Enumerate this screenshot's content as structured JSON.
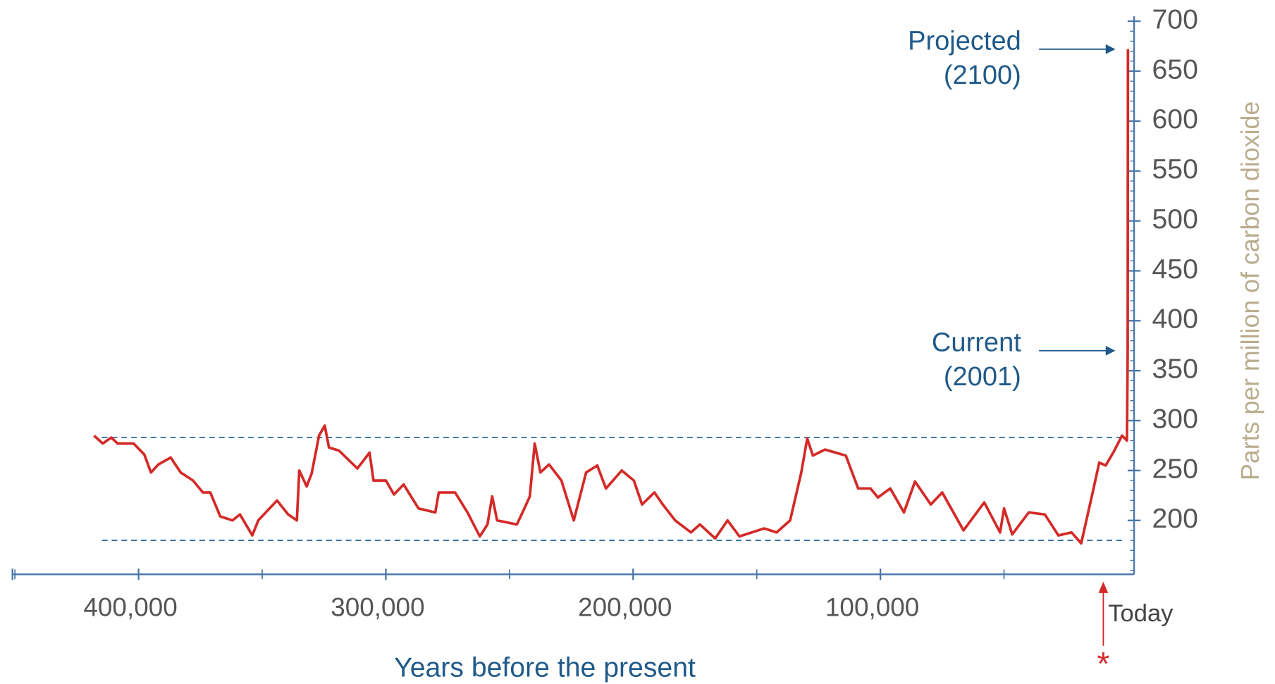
{
  "chart_data": {
    "type": "line",
    "x_label": "Years before the present",
    "y_label": "Parts per million of carbon dioxide",
    "series": [
      {
        "name": "CO2",
        "color": "#d42a27",
        "x": [
          418000,
          414500,
          411000,
          408500,
          402000,
          397700,
          395000,
          392000,
          387000,
          383000,
          378000,
          374000,
          371000,
          367000,
          362000,
          359000,
          354000,
          351600,
          344000,
          339500,
          336000,
          335000,
          332000,
          330000,
          327000,
          324700,
          323000,
          319000,
          311500,
          306600,
          305000,
          300000,
          296700,
          292800,
          286800,
          280000,
          278600,
          272000,
          267000,
          262000,
          258900,
          257000,
          255000,
          247000,
          244000,
          241800,
          239800,
          237500,
          234000,
          229000,
          224000,
          219000,
          214500,
          211000,
          204600,
          199700,
          196400,
          191400,
          188000,
          183000,
          176600,
          173000,
          166800,
          161800,
          157000,
          147000,
          142000,
          136500,
          132000,
          129600,
          127300,
          122400,
          114000,
          109000,
          104000,
          101000,
          96000,
          90500,
          86000,
          79600,
          75000,
          66400,
          58000,
          51600,
          50000,
          46700,
          40000,
          33500,
          28000,
          22700,
          18800,
          13800,
          11500,
          8900,
          5600,
          2300,
          300,
          0,
          -99
        ],
        "values": [
          285,
          277,
          283,
          277,
          277,
          266,
          248,
          256,
          263,
          248,
          240,
          228,
          228,
          204,
          200,
          206,
          185,
          200,
          220,
          206,
          200,
          250,
          234,
          247,
          285,
          295,
          273,
          270,
          252,
          268,
          240,
          240,
          226,
          236,
          212,
          208,
          228,
          228,
          208,
          184,
          196,
          224,
          200,
          196,
          212,
          224,
          277,
          248,
          256,
          240,
          200,
          248,
          255,
          232,
          250,
          240,
          216,
          228,
          216,
          200,
          188,
          196,
          182,
          200,
          184,
          192,
          188,
          200,
          248,
          282,
          265,
          271,
          265,
          232,
          232,
          223,
          232,
          208,
          239,
          216,
          228,
          190,
          218,
          188,
          212,
          186,
          208,
          206,
          185,
          188,
          177,
          232,
          258,
          255,
          269,
          285,
          280,
          370,
          672
        ]
      }
    ],
    "xlim": [
      451000,
      -2600
    ],
    "xticks": [
      {
        "value": 400000,
        "label": "400,000"
      },
      {
        "value": 300000,
        "label": "300,000"
      },
      {
        "value": 200000,
        "label": "200,000"
      },
      {
        "value": 100000,
        "label": "100,000"
      }
    ],
    "ylim": [
      146,
      705
    ],
    "yticks": [
      200,
      250,
      300,
      350,
      400,
      450,
      500,
      550,
      600,
      650,
      700
    ],
    "hlines": [
      283,
      180
    ],
    "annotations": [
      {
        "lines": [
          "Projected",
          "(2100)"
        ]
      },
      {
        "lines": [
          "Current",
          "(2001)"
        ]
      }
    ],
    "today_label": "Today",
    "today_marker": "*"
  }
}
